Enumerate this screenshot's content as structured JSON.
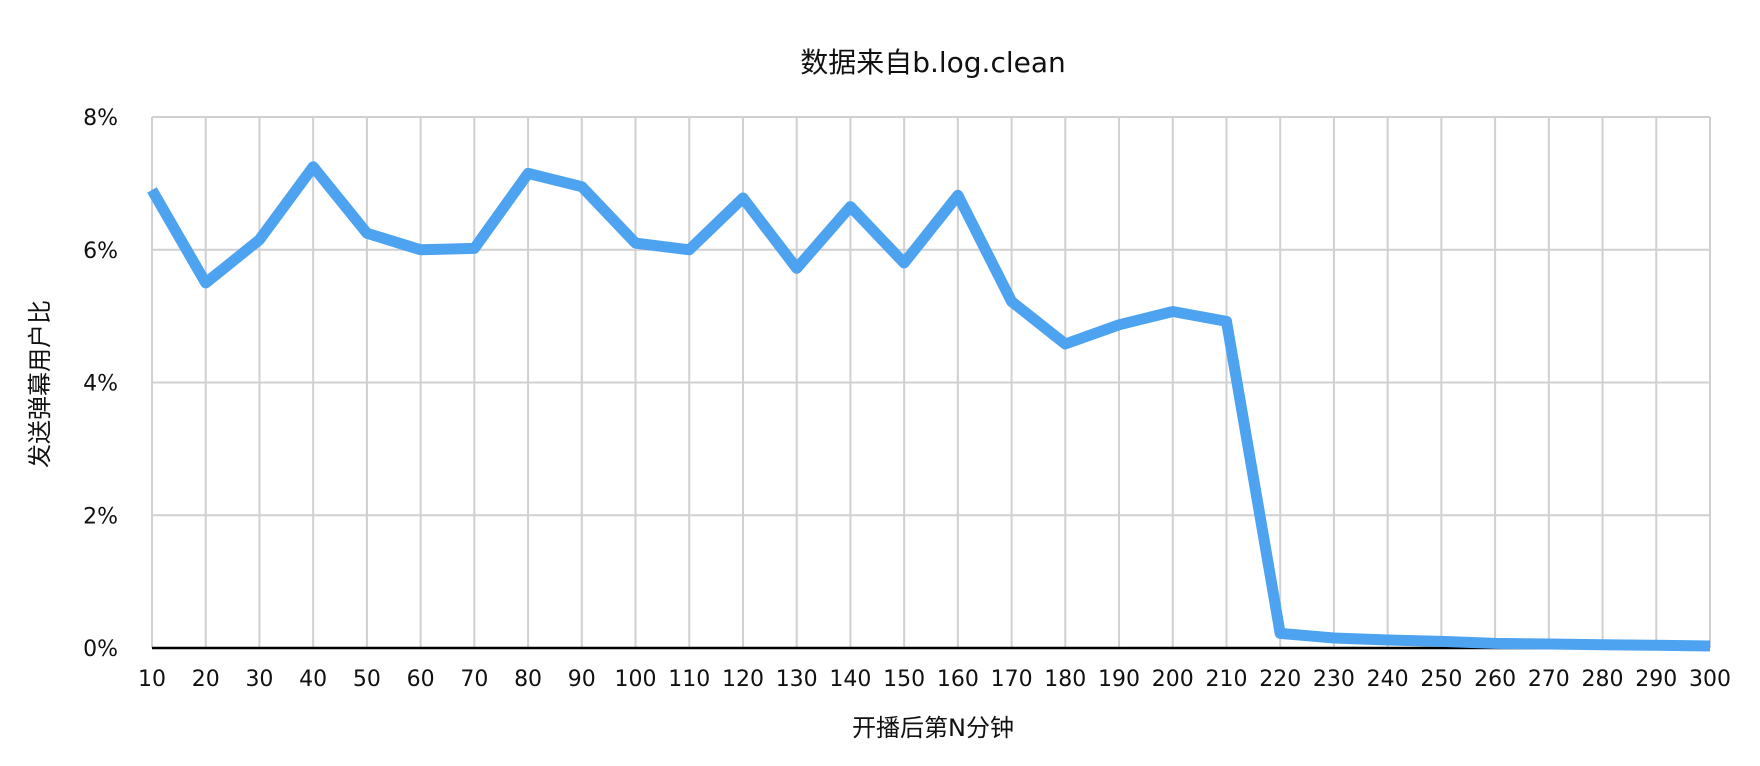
{
  "chart_data": {
    "type": "line",
    "title": "数据来自b.log.clean",
    "xlabel": "开播后第N分钟",
    "ylabel": "发送弹幕用户比",
    "categories": [
      "10",
      "20",
      "30",
      "40",
      "50",
      "60",
      "70",
      "80",
      "90",
      "100",
      "110",
      "120",
      "130",
      "140",
      "150",
      "160",
      "170",
      "180",
      "190",
      "200",
      "210",
      "220",
      "230",
      "240",
      "250",
      "260",
      "270",
      "280",
      "290",
      "300"
    ],
    "y_ticks": [
      "0%",
      "2%",
      "4%",
      "6%",
      "8%"
    ],
    "ylim": [
      0,
      8
    ],
    "y_unit": "%",
    "grid": true,
    "legend": "none",
    "series": [
      {
        "color": "#4da3f0",
        "values": [
          6.9,
          5.5,
          6.15,
          7.25,
          6.25,
          6.0,
          6.02,
          7.15,
          6.95,
          6.1,
          6.0,
          6.78,
          5.72,
          6.65,
          5.8,
          6.82,
          5.22,
          4.58,
          4.87,
          5.07,
          4.92,
          0.22,
          0.15,
          0.12,
          0.1,
          0.07,
          0.06,
          0.05,
          0.04,
          0.03
        ]
      }
    ]
  }
}
